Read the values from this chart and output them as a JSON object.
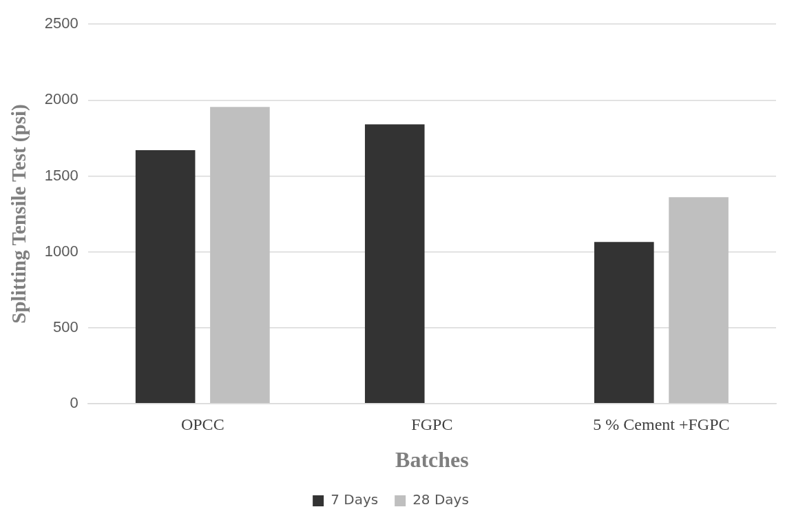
{
  "chart_data": {
    "type": "bar",
    "xlabel": "Batches",
    "ylabel": "Splitting Tensile Test (psi)",
    "categories": [
      "OPCC",
      "FGPC",
      "5 % Cement +FGPC"
    ],
    "series": [
      {
        "name": "7 Days",
        "color": "#333333",
        "values": [
          1670,
          1840,
          1065
        ]
      },
      {
        "name": "28 Days",
        "color": "#bfbfbf",
        "values": [
          1955,
          null,
          1360
        ]
      }
    ],
    "ylim": [
      0,
      2500
    ],
    "yticks": [
      0,
      500,
      1000,
      1500,
      2000,
      2500
    ],
    "grid": "y",
    "legend": "bottom"
  }
}
